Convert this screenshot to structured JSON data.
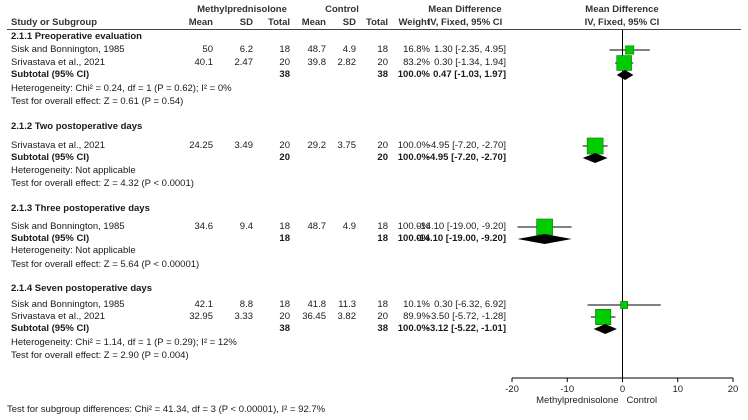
{
  "headers": {
    "exp_group": "Methylprednisolone",
    "ctrl_group": "Control",
    "md_title": "Mean Difference",
    "md_title_plot": "Mean Difference",
    "study": "Study or Subgroup",
    "mean": "Mean",
    "sd": "SD",
    "total": "Total",
    "weight": "Weight",
    "method": "IV, Fixed, 95% CI",
    "method_plot": "IV, Fixed, 95% CI"
  },
  "subgroups": [
    {
      "title": "2.1.1 Preoperative evaluation",
      "studies": [
        {
          "name": "Sisk and Bonnington, 1985",
          "e_mean": "50",
          "e_sd": "6.2",
          "e_total": "18",
          "c_mean": "48.7",
          "c_sd": "4.9",
          "c_total": "18",
          "weight": "16.8%",
          "ci_text": "1.30 [-2.35, 4.95]",
          "md": 1.3,
          "lo": -2.35,
          "hi": 4.95,
          "w": 16.8
        },
        {
          "name": "Srivastava et al., 2021",
          "e_mean": "40.1",
          "e_sd": "2.47",
          "e_total": "20",
          "c_mean": "39.8",
          "c_sd": "2.82",
          "c_total": "20",
          "weight": "83.2%",
          "ci_text": "0.30 [-1.34, 1.94]",
          "md": 0.3,
          "lo": -1.34,
          "hi": 1.94,
          "w": 83.2
        }
      ],
      "subtotal": {
        "label": "Subtotal (95% CI)",
        "e_total": "38",
        "c_total": "38",
        "weight": "100.0%",
        "ci_text": "0.47 [-1.03, 1.97]",
        "md": 0.47,
        "lo": -1.03,
        "hi": 1.97
      },
      "heterogeneity": "Heterogeneity: Chi² = 0.24, df = 1 (P = 0.62); I² = 0%",
      "overall": "Test for overall effect: Z = 0.61 (P = 0.54)"
    },
    {
      "title": "2.1.2 Two postoperative days",
      "studies": [
        {
          "name": "Srivastava et al., 2021",
          "e_mean": "24.25",
          "e_sd": "3.49",
          "e_total": "20",
          "c_mean": "29.2",
          "c_sd": "3.75",
          "c_total": "20",
          "weight": "100.0%",
          "ci_text": "-4.95 [-7.20, -2.70]",
          "md": -4.95,
          "lo": -7.2,
          "hi": -2.7,
          "w": 100
        }
      ],
      "subtotal": {
        "label": "Subtotal (95% CI)",
        "e_total": "20",
        "c_total": "20",
        "weight": "100.0%",
        "ci_text": "-4.95 [-7.20, -2.70]",
        "md": -4.95,
        "lo": -7.2,
        "hi": -2.7
      },
      "heterogeneity": "Heterogeneity: Not applicable",
      "overall": "Test for overall effect: Z = 4.32 (P < 0.0001)"
    },
    {
      "title": "2.1.3 Three postoperative days",
      "studies": [
        {
          "name": "Sisk and Bonnington, 1985",
          "e_mean": "34.6",
          "e_sd": "9.4",
          "e_total": "18",
          "c_mean": "48.7",
          "c_sd": "4.9",
          "c_total": "18",
          "weight": "100.0%",
          "ci_text": "-14.10 [-19.00, -9.20]",
          "md": -14.1,
          "lo": -19.0,
          "hi": -9.2,
          "w": 100
        }
      ],
      "subtotal": {
        "label": "Subtotal (95% CI)",
        "e_total": "18",
        "c_total": "18",
        "weight": "100.0%",
        "ci_text": "-14.10 [-19.00, -9.20]",
        "md": -14.1,
        "lo": -19.0,
        "hi": -9.2
      },
      "heterogeneity": "Heterogeneity: Not applicable",
      "overall": "Test for overall effect: Z = 5.64 (P < 0.00001)"
    },
    {
      "title": "2.1.4 Seven postoperative days",
      "studies": [
        {
          "name": "Sisk and Bonnington, 1985",
          "e_mean": "42.1",
          "e_sd": "8.8",
          "e_total": "18",
          "c_mean": "41.8",
          "c_sd": "11.3",
          "c_total": "18",
          "weight": "10.1%",
          "ci_text": "0.30 [-6.32, 6.92]",
          "md": 0.3,
          "lo": -6.32,
          "hi": 6.92,
          "w": 10.1
        },
        {
          "name": "Srivastava et al., 2021",
          "e_mean": "32.95",
          "e_sd": "3.33",
          "e_total": "20",
          "c_mean": "36.45",
          "c_sd": "3.82",
          "c_total": "20",
          "weight": "89.9%",
          "ci_text": "-3.50 [-5.72, -1.28]",
          "md": -3.5,
          "lo": -5.72,
          "hi": -1.28,
          "w": 89.9
        }
      ],
      "subtotal": {
        "label": "Subtotal (95% CI)",
        "e_total": "38",
        "c_total": "38",
        "weight": "100.0%",
        "ci_text": "-3.12 [-5.22, -1.01]",
        "md": -3.12,
        "lo": -5.22,
        "hi": -1.01
      },
      "heterogeneity": "Heterogeneity: Chi² = 1.14, df = 1 (P = 0.29); I² = 12%",
      "overall": "Test for overall effect: Z = 2.90 (P = 0.004)"
    }
  ],
  "footer": "Test for subgroup differences: Chi² = 41.34, df = 3 (P < 0.00001), I² = 92.7%",
  "chart_data": {
    "type": "forest",
    "xlim": [
      -20,
      20
    ],
    "ticks": [
      -20,
      -10,
      0,
      10,
      20
    ],
    "tick_labels": [
      "-20",
      "-10",
      "0",
      "10",
      "20"
    ],
    "favours_left": "Methylprednisolone",
    "favours_right": "Control",
    "colors": {
      "marker": "#00cc00",
      "marker_edge": "#007a00",
      "diamond": "#000000",
      "axis": "#000000"
    }
  }
}
